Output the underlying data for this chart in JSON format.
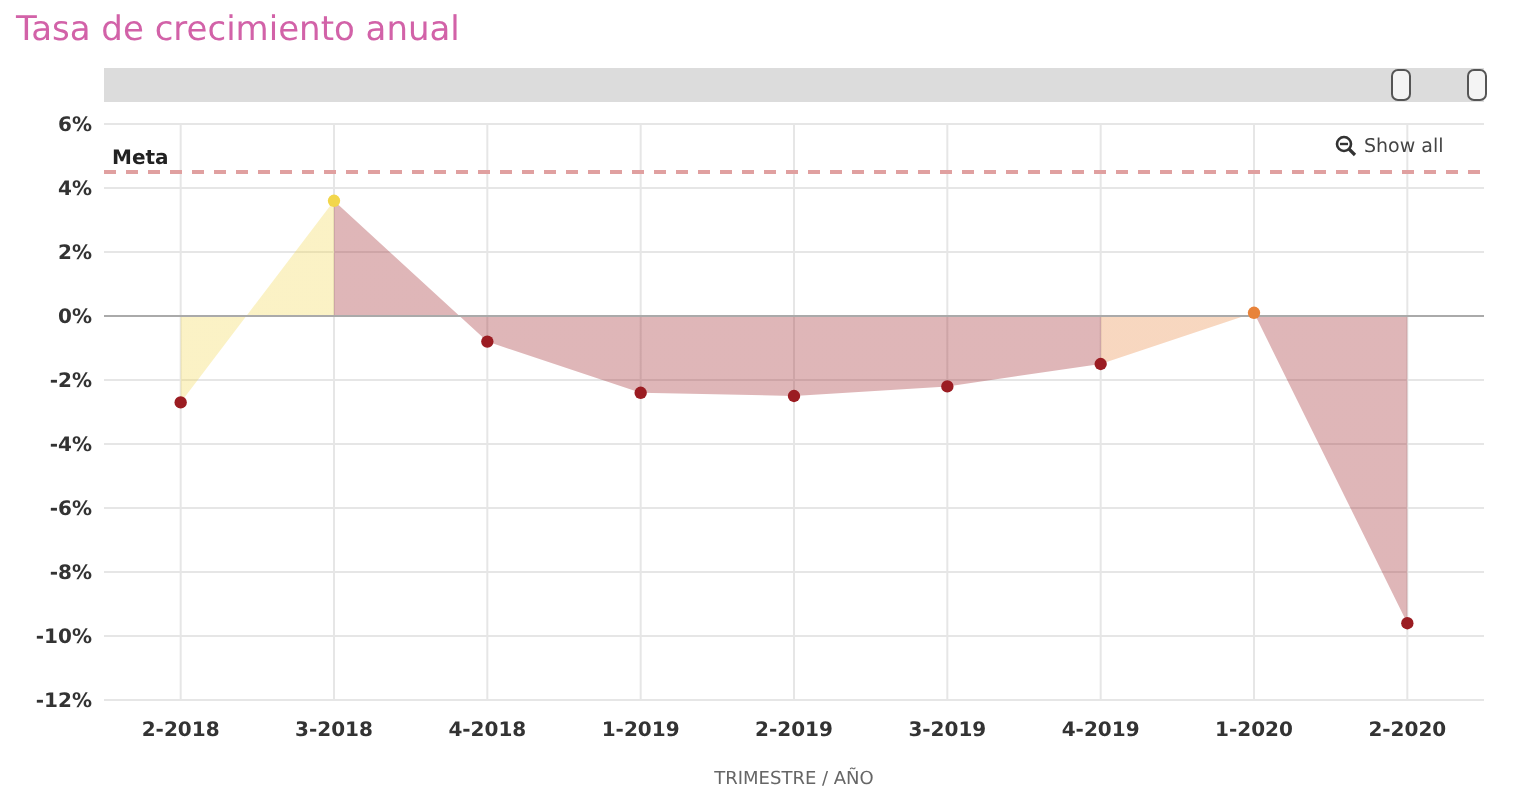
{
  "chart_data": {
    "type": "area",
    "title": "Tasa de crecimiento anual",
    "xlabel": "TRIMESTRE / AÑO",
    "categories": [
      "2-2018",
      "3-2018",
      "4-2018",
      "1-2019",
      "2-2019",
      "3-2019",
      "4-2019",
      "1-2020",
      "2-2020"
    ],
    "values": [
      -2.7,
      3.6,
      -0.8,
      -2.4,
      -2.5,
      -2.2,
      -1.5,
      0.1,
      -9.6
    ],
    "colors": [
      "#9b1c22",
      "#f2d64b",
      "#9b1c22",
      "#9b1c22",
      "#9b1c22",
      "#9b1c22",
      "#9b1c22",
      "#e8833a",
      "#9b1c22"
    ],
    "ylim": [
      -12,
      6
    ],
    "yticks": [
      {
        "value": -12,
        "label": "-12%"
      },
      {
        "value": -10,
        "label": "-10%"
      },
      {
        "value": -8,
        "label": "-8%"
      },
      {
        "value": -6,
        "label": "-6%"
      },
      {
        "value": -4,
        "label": "-4%"
      },
      {
        "value": -2,
        "label": "-2%"
      },
      {
        "value": 0,
        "label": "0%"
      },
      {
        "value": 2,
        "label": "2%"
      },
      {
        "value": 4,
        "label": "4%"
      },
      {
        "value": 6,
        "label": "6%"
      }
    ],
    "ref_lines": [
      {
        "axis": "y",
        "value": 4.5,
        "label": "Meta",
        "color": "#e0a0a0",
        "line_style": "dashed"
      }
    ],
    "annotations": [
      "Show all"
    ],
    "grid": true,
    "marker": "circle"
  }
}
